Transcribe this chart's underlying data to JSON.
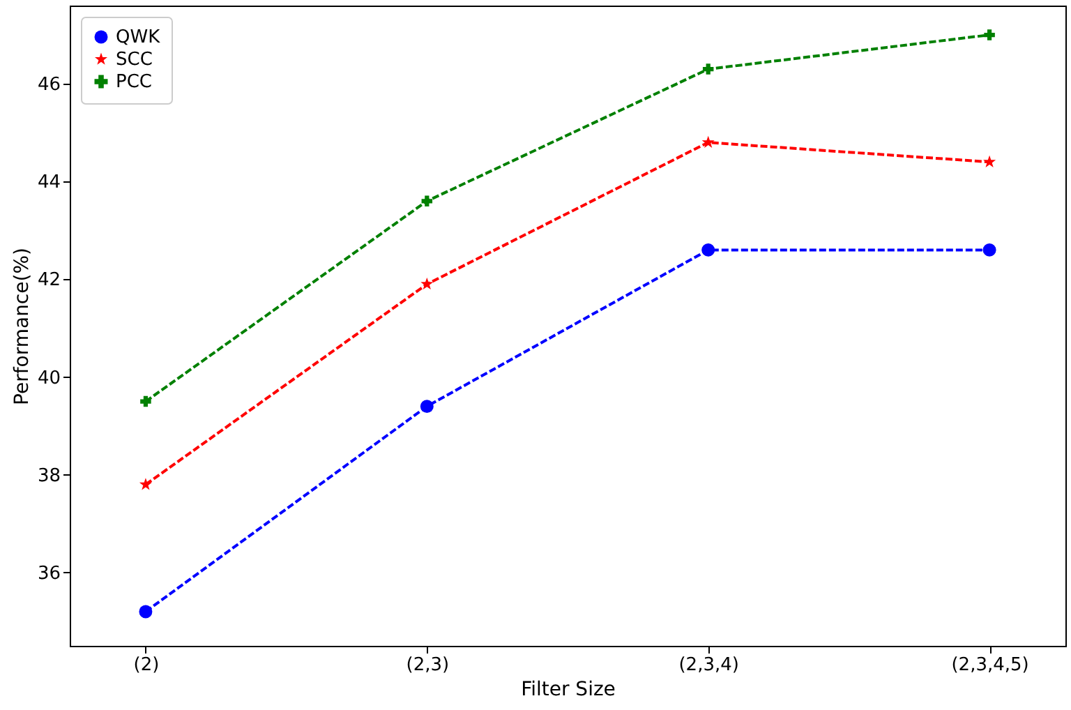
{
  "chart_data": {
    "type": "line",
    "xlabel": "Filter Size",
    "ylabel": "Performance(%)",
    "categories": [
      "(2)",
      "(2,3)",
      "(2,3,4)",
      "(2,3,4,5)"
    ],
    "series": [
      {
        "name": "QWK",
        "color": "#0000ff",
        "marker": "circle",
        "values": [
          35.2,
          39.4,
          42.6,
          42.6
        ]
      },
      {
        "name": "SCC",
        "color": "#ff0000",
        "marker": "star",
        "values": [
          37.8,
          41.9,
          44.8,
          44.4
        ]
      },
      {
        "name": "PCC",
        "color": "#008000",
        "marker": "cross",
        "values": [
          39.5,
          43.6,
          46.3,
          47.0
        ]
      }
    ],
    "ylim": [
      34.5,
      47.6
    ],
    "yticks": [
      36,
      38,
      40,
      42,
      44,
      46
    ],
    "grid": false,
    "legend": "top left",
    "line_style": "dashed"
  }
}
